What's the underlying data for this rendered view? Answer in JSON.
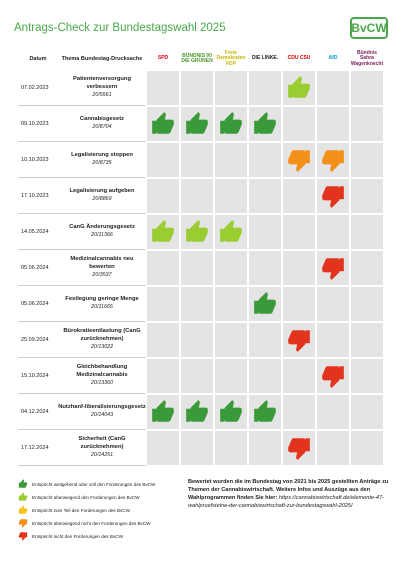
{
  "header": {
    "title": "Antrags-Check zur Bundestagswahl 2025",
    "logo": "BvCW",
    "date_column": "Datum",
    "theme_column": "Thema Bundestag-Drucksache"
  },
  "parties": [
    {
      "name": "SPD",
      "color": "#e3000f"
    },
    {
      "name": "BÜNDNIS 90 DIE GRÜNEN",
      "color": "#46962b"
    },
    {
      "name": "Freie Demokraten FDP",
      "color": "#c8b400"
    },
    {
      "name": "DIE LINKE.",
      "color": "#222222"
    },
    {
      "name": "CDU CSU",
      "color": "#d00000"
    },
    {
      "name": "AfD",
      "color": "#009ee0"
    },
    {
      "name": "Bündnis Sahra Wagenknecht",
      "color": "#7b1e5a"
    }
  ],
  "legend": [
    {
      "label": "Entspricht weitgehend oder voll den Forderungen des BvCW",
      "color": "#3a9a3a",
      "direction": "up"
    },
    {
      "label": "Entspricht überwiegend den Forderungen des BvCW",
      "color": "#9acd32",
      "direction": "up"
    },
    {
      "label": "Entspricht zum Teil den Forderungen des BvCW",
      "color": "#f7c21a",
      "direction": "up"
    },
    {
      "label": "Entspricht überwiegend nicht den Forderungen des BvCW",
      "color": "#f39019",
      "direction": "down"
    },
    {
      "label": "Entspricht nicht den Forderungen des BvCW",
      "color": "#e2341d",
      "direction": "down"
    }
  ],
  "rows": [
    {
      "date": "07.02.2023",
      "topic": "Patientenversorgung verbessern",
      "doc": "20/5561",
      "ratings": [
        null,
        null,
        null,
        null,
        1,
        null,
        null
      ]
    },
    {
      "date": "09.10.2023",
      "topic": "Cannabisgesetz",
      "doc": "20/8704",
      "ratings": [
        0,
        0,
        0,
        0,
        null,
        null,
        null
      ]
    },
    {
      "date": "10.10.2023",
      "topic": "Legalisierung stoppen",
      "doc": "20/8735",
      "ratings": [
        null,
        null,
        null,
        null,
        3,
        3,
        null
      ]
    },
    {
      "date": "17.10.2023",
      "topic": "Legalisierung aufgeben",
      "doc": "20/8869",
      "ratings": [
        null,
        null,
        null,
        null,
        null,
        4,
        null
      ]
    },
    {
      "date": "14.05.2024",
      "topic": "CanG Änderungsgesetz",
      "doc": "20/11366",
      "ratings": [
        1,
        1,
        1,
        null,
        null,
        null,
        null
      ]
    },
    {
      "date": "05.06.2024",
      "topic": "Medizinalcannabis neu bewerten",
      "doc": "20/3537",
      "ratings": [
        null,
        null,
        null,
        null,
        null,
        4,
        null
      ]
    },
    {
      "date": "05.06.2024",
      "topic": "Festlegung geringe Menge",
      "doc": "20/11665",
      "ratings": [
        null,
        null,
        null,
        0,
        null,
        null,
        null
      ]
    },
    {
      "date": "25.09.2024",
      "topic": "Bürokratieentlastung (CanG zurücknehmen)",
      "doc": "20/13022",
      "ratings": [
        null,
        null,
        null,
        null,
        4,
        null,
        null
      ]
    },
    {
      "date": "15.10.2024",
      "topic": "Gleichbehandlung Medizinalcannabis",
      "doc": "20/13360",
      "ratings": [
        null,
        null,
        null,
        null,
        null,
        4,
        null
      ]
    },
    {
      "date": "04.12.2024",
      "topic": "Nutzhanf-liberalisierungsgesetz",
      "doc": "20/14043",
      "ratings": [
        0,
        0,
        0,
        0,
        null,
        null,
        null
      ]
    },
    {
      "date": "17.12.2024",
      "topic": "Sicherheit (CanG zurücknehmen)",
      "doc": "20/14251",
      "ratings": [
        null,
        null,
        null,
        null,
        4,
        null,
        null
      ]
    }
  ],
  "note": {
    "text": "Bewertet wurden die im Bundestag von 2021 bis 2025 gestellten Anträge zu Themen der Cannabiswirtschaft. Weitere Infos und Auszüge aus den Wahlprogrammen finden Sie hier:",
    "link": "https://cannabiswirtschaft.de/elemente-47-wahlpruefsteine-der-cannabiswirtschaft-zur-bundestagswahl-2025/"
  }
}
